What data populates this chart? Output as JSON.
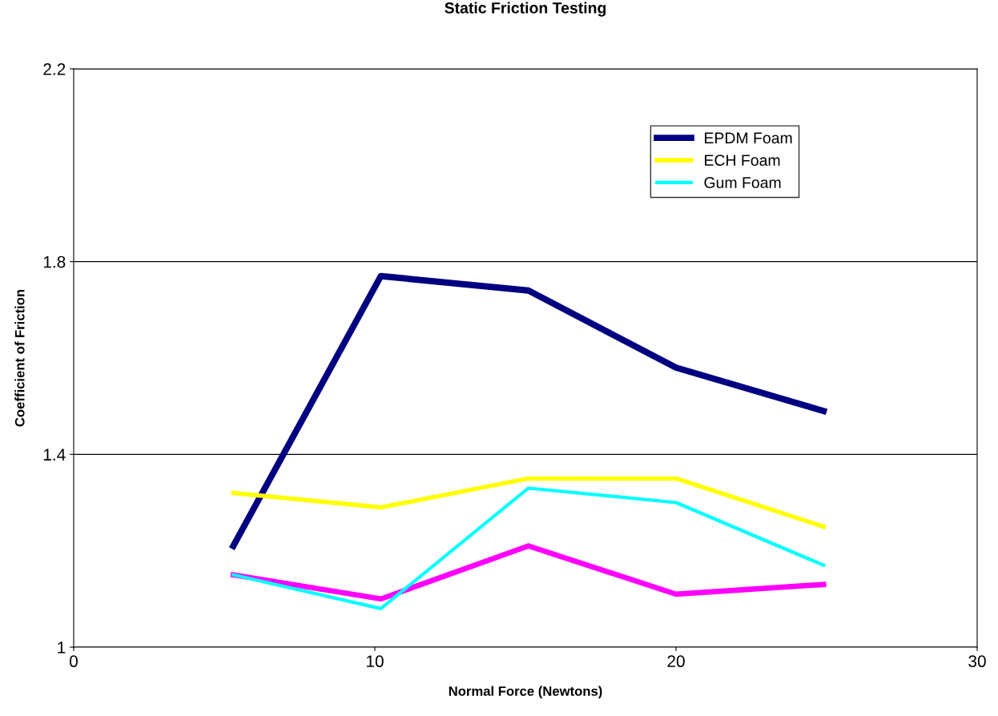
{
  "chart_data": {
    "type": "line",
    "title": "Static Friction Testing",
    "xlabel": "Normal Force (Newtons)",
    "ylabel": "Coefficient of Friction",
    "x": [
      5.3,
      10.2,
      15.1,
      20,
      24.9
    ],
    "series": [
      {
        "name": "EPDM Foam",
        "color": "#000080",
        "values": [
          1.21,
          1.77,
          1.74,
          1.58,
          1.49
        ]
      },
      {
        "color": "#ff00ff",
        "values": [
          1.15,
          1.1,
          1.21,
          1.11,
          1.13
        ]
      },
      {
        "name": "ECH Foam",
        "color": "#ffff00",
        "values": [
          1.32,
          1.29,
          1.35,
          1.35,
          1.25
        ]
      },
      {
        "name": "Gum Foam",
        "color": "#00ffff",
        "values": [
          1.15,
          1.08,
          1.33,
          1.3,
          1.17
        ]
      }
    ],
    "xlim": [
      0,
      30
    ],
    "xticks": [
      0,
      10,
      20,
      30
    ],
    "ylim": [
      1,
      2.2
    ],
    "yticks": [
      1,
      1.4,
      1.8,
      2.2
    ],
    "grid": "y",
    "legend": "top right",
    "marker": "none",
    "line_style": "solid"
  }
}
